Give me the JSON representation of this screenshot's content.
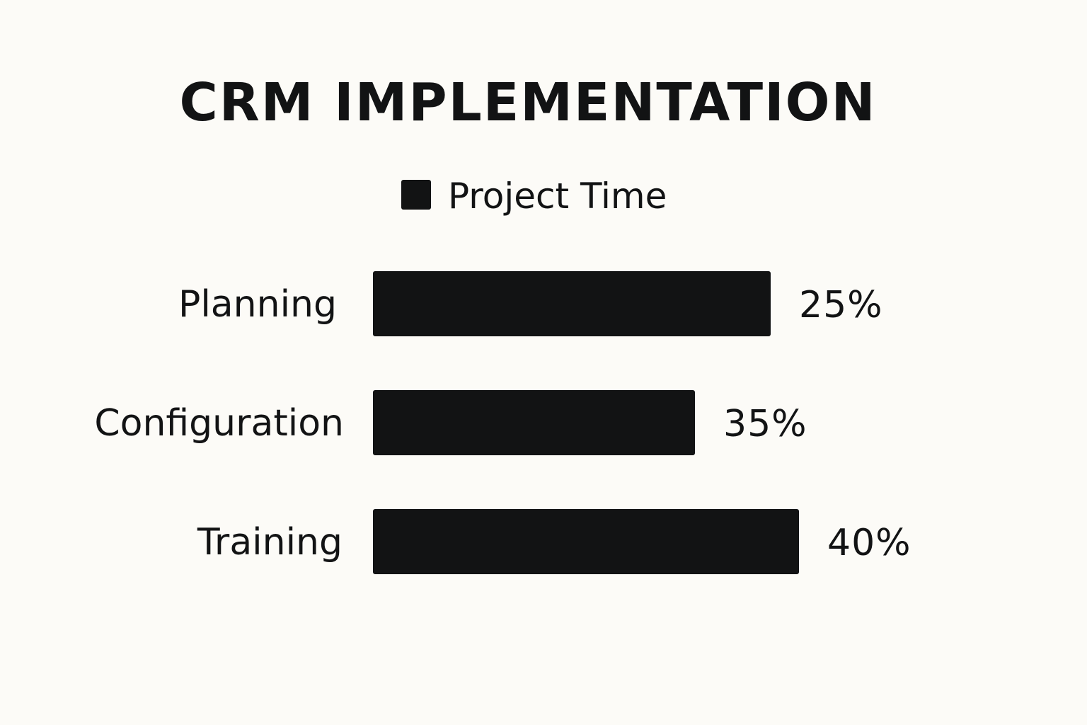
{
  "chart_data": {
    "type": "bar",
    "orientation": "horizontal",
    "title": "CRM IMPLEMENTATION",
    "categories": [
      "Planning",
      "Configuration",
      "Training"
    ],
    "series": [
      {
        "name": "Project Time",
        "values": [
          25,
          35,
          40
        ],
        "labels": [
          "25%",
          "35%",
          "40%"
        ],
        "color": "#121314"
      }
    ],
    "xlabel": "",
    "ylabel": "",
    "unit": "%",
    "grid": false,
    "legend": "top-center"
  }
}
